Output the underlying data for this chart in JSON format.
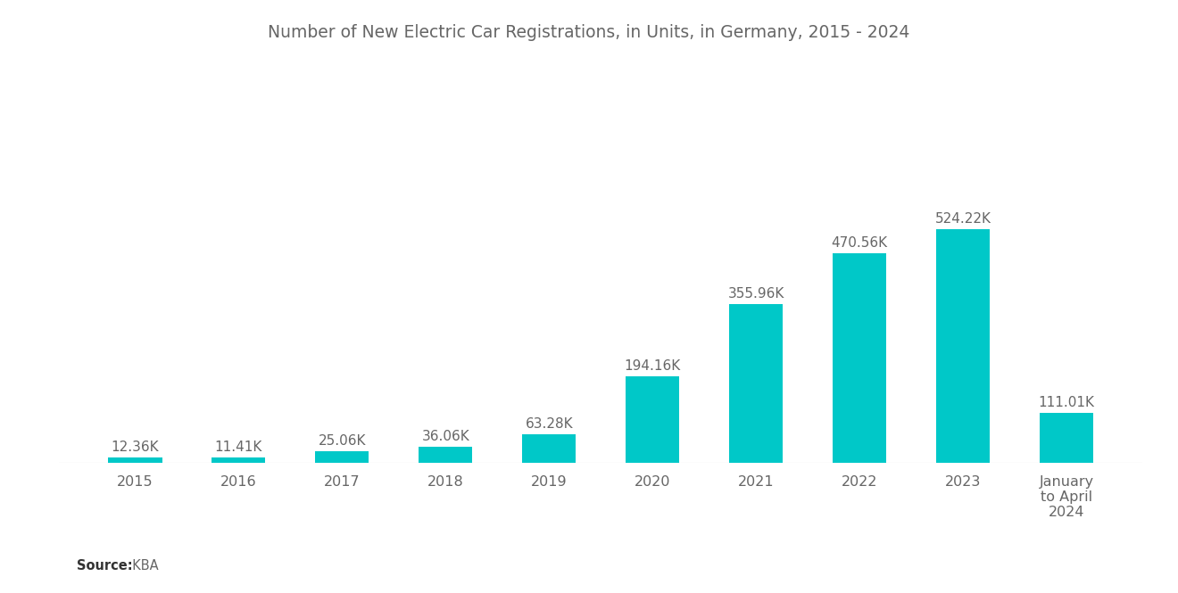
{
  "title": "Number of New Electric Car Registrations, in Units, in Germany, 2015 - 2024",
  "categories": [
    "2015",
    "2016",
    "2017",
    "2018",
    "2019",
    "2020",
    "2021",
    "2022",
    "2023",
    "January\nto April\n2024"
  ],
  "values": [
    12360,
    11410,
    25060,
    36060,
    63280,
    194160,
    355960,
    470560,
    524220,
    111010
  ],
  "labels": [
    "12.36K",
    "11.41K",
    "25.06K",
    "36.06K",
    "63.28K",
    "194.16K",
    "355.96K",
    "470.56K",
    "524.22K",
    "111.01K"
  ],
  "bar_color": "#00C8C8",
  "background_color": "#ffffff",
  "title_color": "#666666",
  "label_color": "#666666",
  "source_label": "Source:",
  "source_value": "  KBA",
  "title_fontsize": 13.5,
  "label_fontsize": 11,
  "tick_fontsize": 11.5,
  "source_fontsize": 10.5,
  "ylim_max": 800000
}
